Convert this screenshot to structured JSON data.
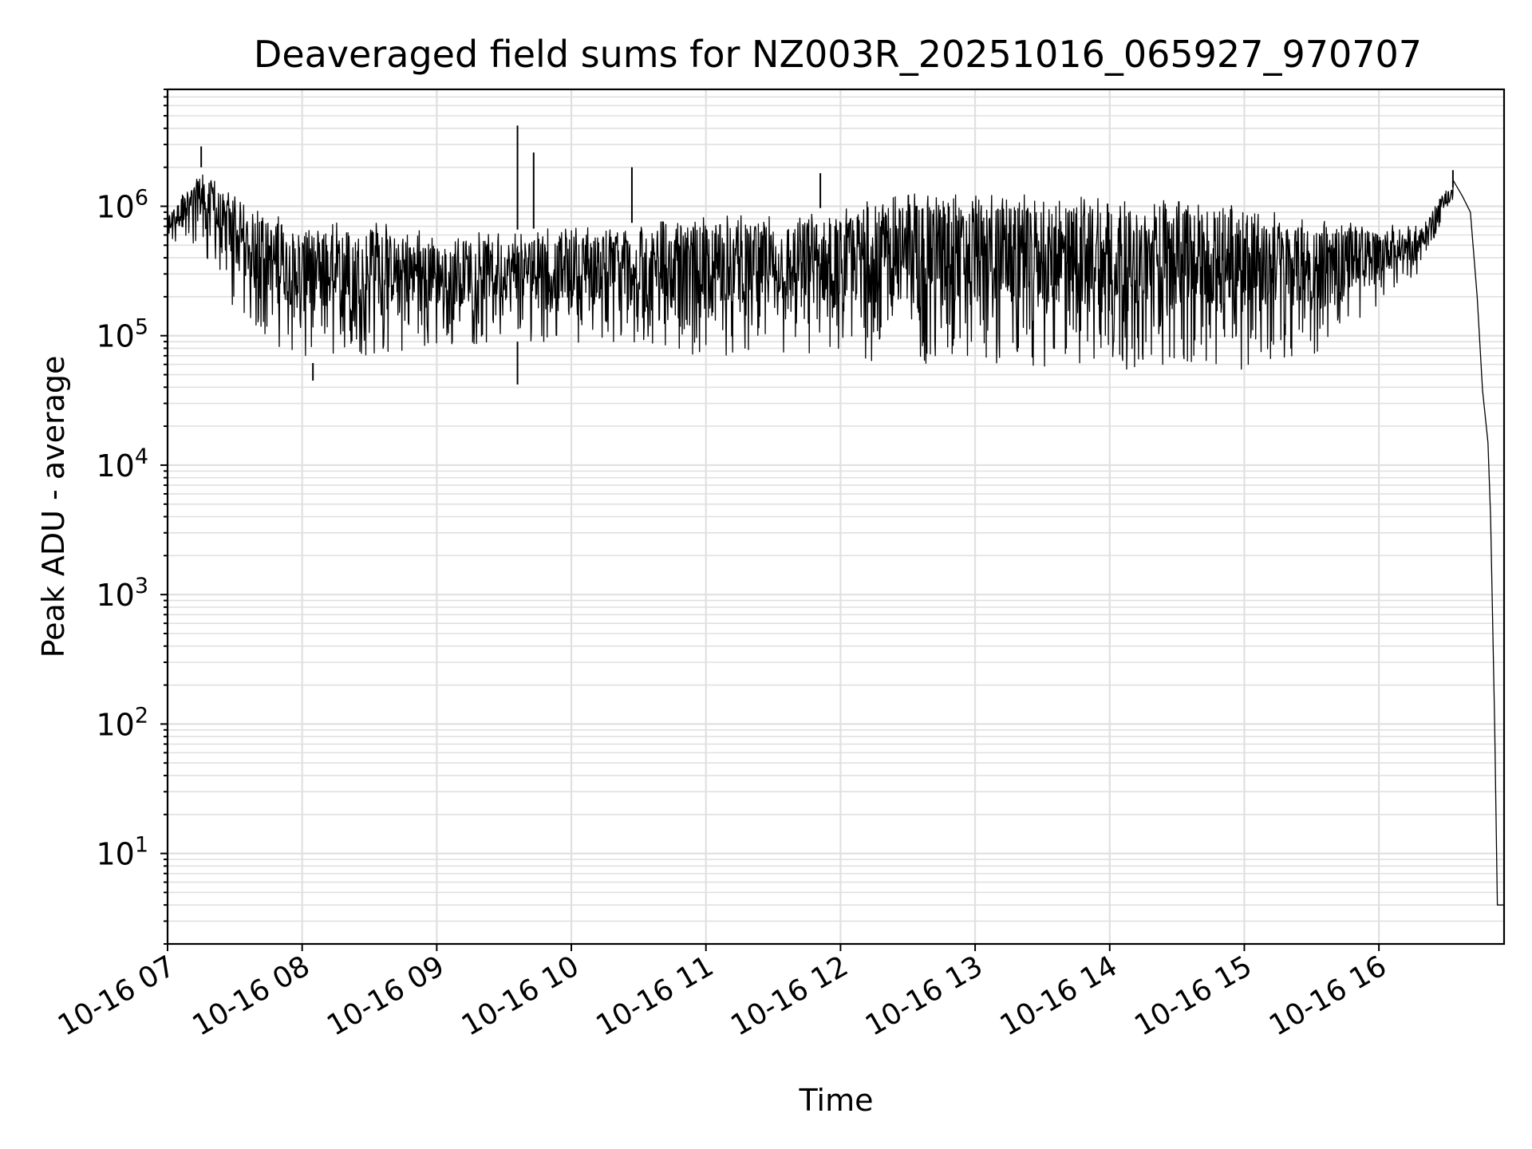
{
  "chart_data": {
    "type": "line",
    "title": "Deaveraged field sums for NZ003R_20251016_065927_970707",
    "xlabel": "Time",
    "ylabel": "Peak ADU - average",
    "yscale": "log",
    "ylim": [
      2,
      8000000
    ],
    "xlim_hours": [
      7.0,
      16.93
    ],
    "x_tick_labels": [
      "10-16 07",
      "10-16 08",
      "10-16 09",
      "10-16 10",
      "10-16 11",
      "10-16 12",
      "10-16 13",
      "10-16 14",
      "10-16 15",
      "10-16 16"
    ],
    "x_tick_hours": [
      7,
      8,
      9,
      10,
      11,
      12,
      13,
      14,
      15,
      16
    ],
    "y_ticks": [
      {
        "value": 10,
        "base": "10",
        "exp": "1"
      },
      {
        "value": 100,
        "base": "10",
        "exp": "2"
      },
      {
        "value": 1000,
        "base": "10",
        "exp": "3"
      },
      {
        "value": 10000,
        "base": "10",
        "exp": "4"
      },
      {
        "value": 100000,
        "base": "10",
        "exp": "5"
      },
      {
        "value": 1000000,
        "base": "10",
        "exp": "6"
      }
    ],
    "grid": true,
    "line_color": "#000000",
    "grid_color": "#e0e0e0",
    "series": [
      {
        "name": "field sums",
        "envelope": [
          {
            "t": 7.0,
            "lo": 500000,
            "hi": 900000
          },
          {
            "t": 7.25,
            "lo": 450000,
            "hi": 2000000
          },
          {
            "t": 7.5,
            "lo": 150000,
            "hi": 1200000
          },
          {
            "t": 8.0,
            "lo": 60000,
            "hi": 700000
          },
          {
            "t": 8.5,
            "lo": 70000,
            "hi": 800000
          },
          {
            "t": 9.0,
            "lo": 80000,
            "hi": 600000
          },
          {
            "t": 9.5,
            "lo": 90000,
            "hi": 650000
          },
          {
            "t": 10.0,
            "lo": 90000,
            "hi": 700000
          },
          {
            "t": 10.5,
            "lo": 80000,
            "hi": 750000
          },
          {
            "t": 11.0,
            "lo": 70000,
            "hi": 850000
          },
          {
            "t": 11.5,
            "lo": 70000,
            "hi": 900000
          },
          {
            "t": 12.0,
            "lo": 60000,
            "hi": 1000000
          },
          {
            "t": 12.5,
            "lo": 60000,
            "hi": 1300000
          },
          {
            "t": 13.0,
            "lo": 60000,
            "hi": 1300000
          },
          {
            "t": 13.5,
            "lo": 55000,
            "hi": 1200000
          },
          {
            "t": 14.0,
            "lo": 55000,
            "hi": 1200000
          },
          {
            "t": 14.5,
            "lo": 55000,
            "hi": 1100000
          },
          {
            "t": 15.0,
            "lo": 55000,
            "hi": 1000000
          },
          {
            "t": 15.5,
            "lo": 70000,
            "hi": 800000
          },
          {
            "t": 16.3,
            "lo": 300000,
            "hi": 700000
          },
          {
            "t": 16.5,
            "lo": 900000,
            "hi": 1400000
          }
        ],
        "spikes": [
          {
            "t": 7.25,
            "v": 2900000
          },
          {
            "t": 9.6,
            "v": 4200000
          },
          {
            "t": 9.6,
            "v": 42000
          },
          {
            "t": 9.72,
            "v": 2600000
          },
          {
            "t": 10.45,
            "v": 2000000
          },
          {
            "t": 11.85,
            "v": 1800000
          },
          {
            "t": 8.08,
            "v": 45000
          },
          {
            "t": 16.55,
            "v": 1900000
          }
        ],
        "tail": [
          {
            "t": 16.55,
            "v": 1600000
          },
          {
            "t": 16.62,
            "v": 1200000
          },
          {
            "t": 16.68,
            "v": 900000
          },
          {
            "t": 16.73,
            "v": 200000
          },
          {
            "t": 16.77,
            "v": 38000
          },
          {
            "t": 16.81,
            "v": 15000
          },
          {
            "t": 16.83,
            "v": 4000
          },
          {
            "t": 16.86,
            "v": 100
          },
          {
            "t": 16.88,
            "v": 4
          },
          {
            "t": 16.93,
            "v": 4
          }
        ]
      }
    ]
  }
}
